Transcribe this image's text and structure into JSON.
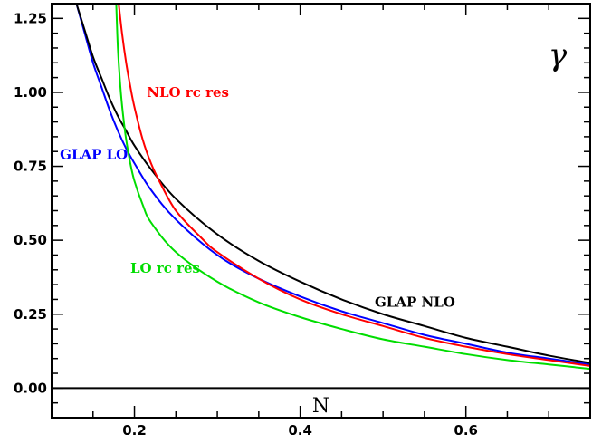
{
  "chart_data": {
    "type": "line",
    "title": "",
    "xlabel": "N",
    "ylabel": "γ",
    "xlim": [
      0.1,
      0.75
    ],
    "ylim": [
      -0.1,
      1.3
    ],
    "x_ticks": [
      0.2,
      0.4,
      0.6
    ],
    "x_tick_labels": [
      "0.2",
      "0.4",
      "0.6"
    ],
    "y_ticks": [
      0.0,
      0.25,
      0.5,
      0.75,
      1.0,
      1.25
    ],
    "y_tick_labels": [
      "0.00",
      "0.25",
      "0.50",
      "0.75",
      "1.00",
      "1.25"
    ],
    "grid": false,
    "reference_line_y": 0.0,
    "series": [
      {
        "name": "GLAP LO",
        "color": "#0000ff",
        "x": [
          0.13,
          0.14,
          0.15,
          0.16,
          0.17,
          0.18,
          0.19,
          0.2,
          0.22,
          0.25,
          0.3,
          0.35,
          0.4,
          0.45,
          0.5,
          0.55,
          0.6,
          0.65,
          0.7,
          0.75
        ],
        "y": [
          1.3,
          1.2,
          1.1,
          1.02,
          0.94,
          0.87,
          0.81,
          0.76,
          0.67,
          0.57,
          0.45,
          0.37,
          0.31,
          0.26,
          0.22,
          0.18,
          0.15,
          0.12,
          0.1,
          0.08
        ]
      },
      {
        "name": "GLAP NLO",
        "color": "#000000",
        "x": [
          0.13,
          0.14,
          0.15,
          0.16,
          0.17,
          0.18,
          0.19,
          0.2,
          0.22,
          0.25,
          0.3,
          0.35,
          0.4,
          0.45,
          0.5,
          0.55,
          0.6,
          0.65,
          0.7,
          0.75
        ],
        "y": [
          1.3,
          1.21,
          1.12,
          1.05,
          0.98,
          0.92,
          0.87,
          0.82,
          0.74,
          0.64,
          0.52,
          0.43,
          0.36,
          0.3,
          0.25,
          0.21,
          0.17,
          0.14,
          0.11,
          0.085
        ]
      },
      {
        "name": "NLO rc res",
        "color": "#ff0000",
        "x": [
          0.181,
          0.185,
          0.19,
          0.195,
          0.2,
          0.21,
          0.22,
          0.23,
          0.25,
          0.28,
          0.3,
          0.35,
          0.4,
          0.45,
          0.5,
          0.55,
          0.6,
          0.65,
          0.7,
          0.75
        ],
        "y": [
          1.3,
          1.2,
          1.1,
          1.02,
          0.95,
          0.84,
          0.76,
          0.7,
          0.6,
          0.51,
          0.46,
          0.37,
          0.3,
          0.25,
          0.21,
          0.17,
          0.14,
          0.115,
          0.095,
          0.075
        ]
      },
      {
        "name": "LO rc res",
        "color": "#00dd00",
        "x": [
          0.178,
          0.18,
          0.183,
          0.186,
          0.19,
          0.195,
          0.2,
          0.21,
          0.22,
          0.25,
          0.3,
          0.35,
          0.4,
          0.45,
          0.5,
          0.55,
          0.6,
          0.65,
          0.7,
          0.75
        ],
        "y": [
          1.3,
          1.15,
          1.02,
          0.93,
          0.84,
          0.76,
          0.7,
          0.62,
          0.56,
          0.46,
          0.36,
          0.29,
          0.24,
          0.2,
          0.165,
          0.14,
          0.115,
          0.095,
          0.08,
          0.065
        ]
      }
    ],
    "annotations": [
      {
        "text": "NLO rc res",
        "color": "#ff0000",
        "x": 0.215,
        "y": 0.985
      },
      {
        "text": "GLAP LO",
        "color": "#0000ff",
        "x": 0.11,
        "y": 0.775
      },
      {
        "text": "LO rc res",
        "color": "#00dd00",
        "x": 0.195,
        "y": 0.39
      },
      {
        "text": "GLAP NLO",
        "color": "#000000",
        "x": 0.49,
        "y": 0.275
      }
    ],
    "corner_symbol": "γ"
  }
}
